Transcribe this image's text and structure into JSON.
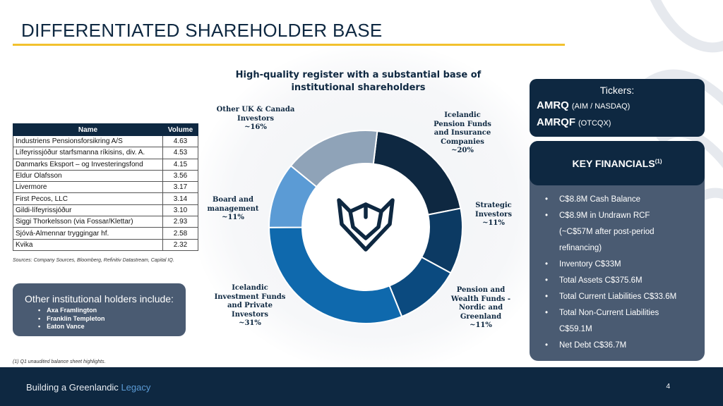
{
  "slide": {
    "title": "DIFFERENTIATED SHAREHOLDER BASE",
    "page_number": "4",
    "footer": {
      "text_main": "Building a Greenlandic",
      "text_accent": "Legacy"
    },
    "colors": {
      "navy": "#0e2841",
      "gold": "#f2c12e",
      "slate": "#4a5b72",
      "accent_blue": "#5b9bd5"
    }
  },
  "chart_data": {
    "type": "donut",
    "title": "High-quality register with a substantial base of institutional shareholders",
    "unit": "%",
    "series": [
      {
        "label": "Icelandic Pension Funds and Insurance Companies",
        "value_label": "~20%",
        "value": 20,
        "color": "#0e2841"
      },
      {
        "label": "Strategic Investors",
        "value_label": "~11%",
        "value": 11,
        "color": "#0c3a63"
      },
      {
        "label": "Pension and Wealth Funds - Nordic and Greenland",
        "value_label": "~11%",
        "value": 11,
        "color": "#0b4a7f"
      },
      {
        "label": "Icelandic Investment Funds and Private Investors",
        "value_label": "~31%",
        "value": 31,
        "color": "#0f69ad"
      },
      {
        "label": "Board and management",
        "value_label": "~11%",
        "value": 11,
        "color": "#5b9bd5"
      },
      {
        "label": "Other UK & Canada Investors",
        "value_label": "~16%",
        "value": 16,
        "color": "#8fa3b8"
      }
    ],
    "center_icon": "fox-logo-icon"
  },
  "holders_table": {
    "headers": [
      "Name",
      "Volume"
    ],
    "rows": [
      [
        "Industriens Pensionsforsikring A/S",
        "4.63"
      ],
      [
        "Lífeyrissjóður starfsmanna ríkisins, div. A.",
        "4.53"
      ],
      [
        "Danmarks Eksport – og Investeringsfond",
        "4.15"
      ],
      [
        "Eldur Olafsson",
        "3.56"
      ],
      [
        "Livermore",
        "3.17"
      ],
      [
        "First Pecos, LLC",
        "3.14"
      ],
      [
        "Gildi-lífeyrissjóður",
        "3.10"
      ],
      [
        "Siggi Thorkelsson (via Fossar/Klettar)",
        "2.93"
      ],
      [
        "Sjóvá-Almennar tryggingar hf.",
        "2.58"
      ],
      [
        "Kvika",
        "2.32"
      ]
    ],
    "sources": "Sources: Company Sources, Bloomberg, Refinitiv Datastream, Capital IQ."
  },
  "other_holders": {
    "title": "Other institutional holders include:",
    "items": [
      "Axa Framlington",
      "Franklin Templeton",
      "Eaton Vance"
    ]
  },
  "footnote": "(1)  Q1 unaudited balance sheet highlights.",
  "tickers": {
    "title": "Tickers:",
    "items": [
      {
        "symbol": "AMRQ",
        "exchange": "(AIM / NASDAQ)"
      },
      {
        "symbol": "AMRQF",
        "exchange": "(OTCQX)"
      }
    ]
  },
  "key_financials": {
    "title": "KEY FINANCIALS",
    "title_sup": "(1)",
    "items": [
      "C$8.8M Cash Balance",
      "C$8.9M in Undrawn RCF",
      "(~C$57M after post-period",
      "refinancing)",
      "Inventory C$33M",
      "Total Assets C$375.6M",
      "Total Current Liabilities C$33.6M",
      "Total Non-Current Liabilities",
      "C$59.1M",
      "Net Debt C$36.7M"
    ]
  }
}
